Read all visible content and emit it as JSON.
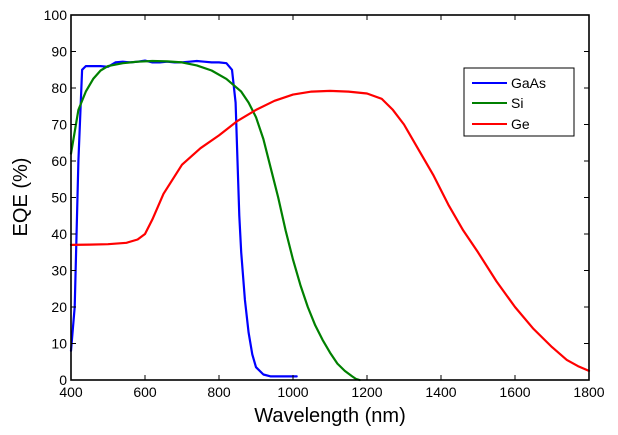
{
  "chart_data": {
    "type": "line",
    "title": "",
    "xlabel": "Wavelength (nm)",
    "ylabel": "EQE (%)",
    "xlim": [
      400,
      1800
    ],
    "ylim": [
      0,
      100
    ],
    "xticks": [
      400,
      600,
      800,
      1000,
      1200,
      1400,
      1600,
      1800
    ],
    "yticks": [
      0,
      10,
      20,
      30,
      40,
      50,
      60,
      70,
      80,
      90,
      100
    ],
    "grid": false,
    "legend": {
      "position": "top-right",
      "entries": [
        "GaAs",
        "Si",
        "Ge"
      ]
    },
    "series": [
      {
        "name": "GaAs",
        "color": "#0000ff",
        "x": [
          400,
          410,
          420,
          430,
          440,
          460,
          480,
          500,
          520,
          540,
          560,
          580,
          600,
          620,
          640,
          660,
          680,
          700,
          720,
          740,
          760,
          780,
          800,
          820,
          835,
          845,
          850,
          855,
          860,
          870,
          880,
          890,
          900,
          920,
          940,
          960,
          980,
          1000,
          1010
        ],
        "y": [
          8,
          20,
          60,
          85,
          86,
          86,
          86,
          85.8,
          87,
          87.2,
          87,
          87.2,
          87.5,
          87,
          87,
          87.2,
          87,
          87,
          87.2,
          87.4,
          87.2,
          87,
          87,
          86.8,
          85,
          76,
          60,
          45,
          35,
          22,
          13,
          7,
          3.5,
          1.5,
          1,
          1,
          1,
          1,
          1
        ]
      },
      {
        "name": "Si",
        "color": "#008000",
        "x": [
          400,
          410,
          420,
          440,
          460,
          480,
          500,
          540,
          580,
          620,
          660,
          700,
          740,
          780,
          820,
          860,
          880,
          900,
          920,
          940,
          960,
          980,
          1000,
          1020,
          1040,
          1060,
          1080,
          1100,
          1120,
          1140,
          1160,
          1170,
          1180
        ],
        "y": [
          62,
          68,
          74,
          79,
          82.5,
          84.8,
          86,
          86.8,
          87.2,
          87.4,
          87.3,
          87,
          86.2,
          84.8,
          82.5,
          79,
          76,
          72,
          66,
          58,
          50,
          41,
          33,
          26,
          20,
          15,
          11,
          7.5,
          4.5,
          2.5,
          1,
          0.3,
          0
        ]
      },
      {
        "name": "Ge",
        "color": "#ff0000",
        "x": [
          400,
          450,
          500,
          550,
          580,
          600,
          620,
          650,
          700,
          750,
          800,
          850,
          900,
          950,
          1000,
          1050,
          1100,
          1150,
          1200,
          1240,
          1270,
          1300,
          1340,
          1380,
          1420,
          1460,
          1500,
          1550,
          1600,
          1650,
          1700,
          1740,
          1770,
          1800
        ],
        "y": [
          37,
          37.1,
          37.2,
          37.6,
          38.5,
          40,
          44,
          51,
          59,
          63.5,
          67,
          71,
          74,
          76.5,
          78.2,
          79,
          79.2,
          79,
          78.5,
          77,
          74,
          70,
          63,
          56,
          48,
          41,
          35,
          27,
          20,
          14,
          9,
          5.5,
          3.8,
          2.5
        ]
      }
    ]
  }
}
